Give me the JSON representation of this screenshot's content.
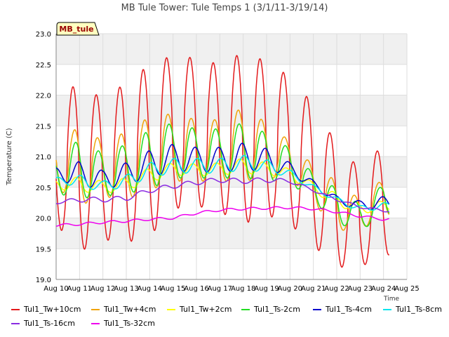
{
  "chart_data": {
    "type": "line",
    "title": "MB Tule Tower: Tule Temps 1 (3/1/11-3/19/14)",
    "ylabel": "Temperature (C)",
    "xlabel": "Time",
    "station_label": "MB_tule",
    "ylim": [
      19.0,
      23.0
    ],
    "xlim": [
      10,
      25
    ],
    "yticks": [
      "19.0",
      "19.5",
      "20.0",
      "20.5",
      "21.0",
      "21.5",
      "22.0",
      "22.5",
      "23.0"
    ],
    "xticks": [
      "Aug 10",
      "Aug 11",
      "Aug 12",
      "Aug 13",
      "Aug 14",
      "Aug 15",
      "Aug 16",
      "Aug 17",
      "Aug 18",
      "Aug 19",
      "Aug 20",
      "Aug 21",
      "Aug 22",
      "Aug 23",
      "Aug 24",
      "Aug 25"
    ],
    "grid": true,
    "legend_position": "bottom",
    "series": [
      {
        "name": "Tul1_Tw+10cm",
        "color": "#e31a1c",
        "mean": [
          21.0,
          20.8,
          20.8,
          20.9,
          21.1,
          21.4,
          21.4,
          21.3,
          21.3,
          21.3,
          21.1,
          20.7,
          20.2,
          20.0,
          20.3
        ],
        "amp": [
          1.1,
          1.35,
          1.15,
          1.3,
          1.4,
          1.25,
          1.2,
          1.2,
          1.4,
          1.25,
          1.2,
          1.15,
          1.0,
          0.8,
          0.9
        ],
        "phase": 0.72,
        "sharp": 2.2
      },
      {
        "name": "Tul1_Tw+4cm",
        "color": "#f0a30a",
        "mean": [
          20.85,
          20.85,
          20.8,
          20.85,
          21.05,
          21.15,
          21.1,
          21.1,
          21.2,
          21.1,
          20.95,
          20.55,
          20.2,
          20.05,
          20.35
        ],
        "amp": [
          0.35,
          0.65,
          0.45,
          0.55,
          0.6,
          0.55,
          0.5,
          0.5,
          0.6,
          0.45,
          0.3,
          0.3,
          0.4,
          0.25,
          0.3
        ],
        "phase": 0.78,
        "sharp": 1.6
      },
      {
        "name": "Tul1_Tw+2cm",
        "color": "#ffff00",
        "mean": [
          20.55,
          20.55,
          20.5,
          20.55,
          20.7,
          20.8,
          20.78,
          20.8,
          20.85,
          20.8,
          20.72,
          20.5,
          20.3,
          20.15,
          20.2
        ],
        "amp": [
          0.08,
          0.12,
          0.1,
          0.1,
          0.12,
          0.1,
          0.1,
          0.1,
          0.12,
          0.1,
          0.08,
          0.08,
          0.1,
          0.08,
          0.08
        ],
        "phase": 0.85,
        "sharp": 1.0
      },
      {
        "name": "Tul1_Ts-2cm",
        "color": "#22dd22",
        "mean": [
          20.7,
          20.8,
          20.7,
          20.8,
          20.95,
          21.1,
          21.05,
          21.05,
          21.1,
          21.0,
          20.85,
          20.5,
          20.2,
          20.0,
          20.3
        ],
        "amp": [
          0.3,
          0.48,
          0.35,
          0.4,
          0.48,
          0.45,
          0.4,
          0.4,
          0.45,
          0.38,
          0.28,
          0.22,
          0.28,
          0.22,
          0.25
        ],
        "phase": 0.82,
        "sharp": 1.4
      },
      {
        "name": "Tul1_Ts-4cm",
        "color": "#0000cc",
        "mean": [
          20.72,
          20.72,
          20.62,
          20.72,
          20.88,
          20.98,
          20.95,
          20.95,
          21.0,
          20.95,
          20.8,
          20.55,
          20.3,
          20.2,
          20.25
        ],
        "amp": [
          0.1,
          0.2,
          0.15,
          0.18,
          0.22,
          0.22,
          0.2,
          0.2,
          0.22,
          0.18,
          0.1,
          0.06,
          0.06,
          0.08,
          0.1
        ],
        "phase": 0.95,
        "sharp": 1.0
      },
      {
        "name": "Tul1_Ts-8cm",
        "color": "#00e5ee",
        "mean": [
          20.62,
          20.6,
          20.52,
          20.6,
          20.78,
          20.85,
          20.85,
          20.85,
          20.9,
          20.85,
          20.72,
          20.5,
          20.3,
          20.15,
          20.2
        ],
        "amp": [
          0.04,
          0.1,
          0.08,
          0.1,
          0.12,
          0.12,
          0.12,
          0.12,
          0.12,
          0.1,
          0.06,
          0.04,
          0.04,
          0.05,
          0.05
        ],
        "phase": 1.05,
        "sharp": 1.0
      },
      {
        "name": "Tul1_Ts-16cm",
        "color": "#8a2be2",
        "mean": [
          20.25,
          20.3,
          20.3,
          20.32,
          20.45,
          20.52,
          20.58,
          20.62,
          20.6,
          20.62,
          20.6,
          20.45,
          20.3,
          20.18,
          20.12
        ],
        "amp": [
          0.02,
          0.04,
          0.04,
          0.04,
          0.04,
          0.04,
          0.04,
          0.04,
          0.04,
          0.04,
          0.03,
          0.02,
          0.02,
          0.02,
          0.02
        ],
        "phase": 0.6,
        "sharp": 1.0
      },
      {
        "name": "Tul1_Ts-32cm",
        "color": "#ee00ee",
        "mean": [
          19.88,
          19.9,
          19.93,
          19.95,
          19.98,
          20.0,
          20.08,
          20.13,
          20.15,
          20.16,
          20.17,
          20.15,
          20.1,
          20.03,
          19.98
        ],
        "amp": [
          0.02,
          0.02,
          0.02,
          0.02,
          0.02,
          0.02,
          0.02,
          0.02,
          0.02,
          0.02,
          0.02,
          0.02,
          0.02,
          0.02,
          0.02
        ],
        "phase": 0.4,
        "sharp": 1.0
      }
    ]
  }
}
